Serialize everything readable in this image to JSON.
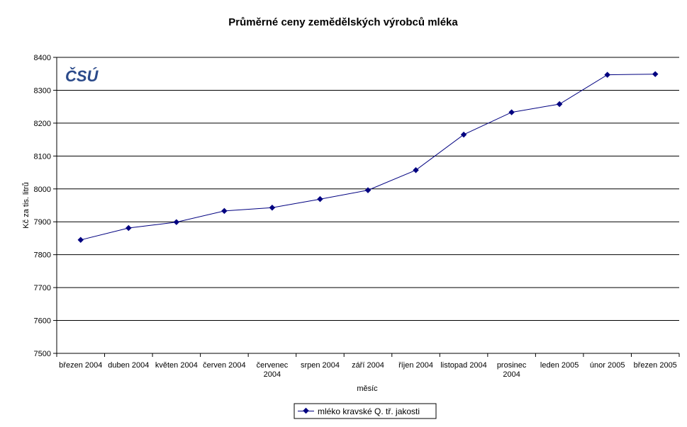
{
  "chart_data": {
    "type": "line",
    "title": "Průměrné ceny zemědělských výrobců mléka",
    "xlabel": "měsíc",
    "ylabel": "Kč za tis. litrů",
    "ylim": [
      7500,
      8400
    ],
    "ytick_step": 100,
    "grid": true,
    "legend_position": "bottom",
    "logo_text": "ČSÚ",
    "categories": [
      [
        "březen 2004"
      ],
      [
        "duben 2004"
      ],
      [
        "květen 2004"
      ],
      [
        "červen 2004"
      ],
      [
        "červenec",
        "2004"
      ],
      [
        "srpen 2004"
      ],
      [
        "září 2004"
      ],
      [
        "říjen 2004"
      ],
      [
        "listopad 2004"
      ],
      [
        "prosinec",
        "2004"
      ],
      [
        "leden 2005"
      ],
      [
        "únor 2005"
      ],
      [
        "březen 2005"
      ]
    ],
    "series": [
      {
        "name": "mléko kravské Q. tř. jakosti",
        "color": "#000080",
        "values": [
          7845,
          7881,
          7899,
          7933,
          7943,
          7969,
          7996,
          8057,
          8165,
          8233,
          8258,
          8347,
          8349
        ]
      }
    ]
  }
}
